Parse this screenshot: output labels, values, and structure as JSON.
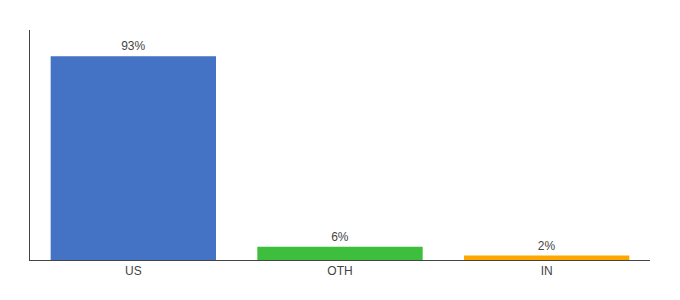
{
  "chart_data": {
    "type": "bar",
    "categories": [
      "US",
      "OTH",
      "IN"
    ],
    "values": [
      93,
      6,
      2
    ],
    "value_labels": [
      "93%",
      "6%",
      "2%"
    ],
    "colors": [
      "#4472C4",
      "#3DBE3D",
      "#FFA500"
    ],
    "ylim": [
      0,
      105
    ],
    "data_labels": true,
    "tick_labels": "x",
    "grid": false
  }
}
